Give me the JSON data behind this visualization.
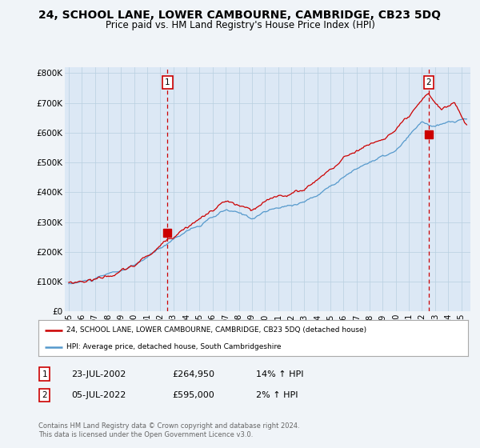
{
  "title": "24, SCHOOL LANE, LOWER CAMBOURNE, CAMBRIDGE, CB23 5DQ",
  "subtitle": "Price paid vs. HM Land Registry's House Price Index (HPI)",
  "title_fontsize": 10,
  "subtitle_fontsize": 8.5,
  "ylabel_ticks": [
    "£0",
    "£100K",
    "£200K",
    "£300K",
    "£400K",
    "£500K",
    "£600K",
    "£700K",
    "£800K"
  ],
  "ytick_values": [
    0,
    100000,
    200000,
    300000,
    400000,
    500000,
    600000,
    700000,
    800000
  ],
  "ylim": [
    0,
    820000
  ],
  "xlim_start": 1994.7,
  "xlim_end": 2025.7,
  "red_line_color": "#cc0000",
  "blue_line_color": "#5599cc",
  "dashed_line_color": "#cc0000",
  "marker1_x": 2002.55,
  "marker1_y": 264950,
  "marker2_x": 2022.51,
  "marker2_y": 595000,
  "legend_line1": "24, SCHOOL LANE, LOWER CAMBOURNE, CAMBRIDGE, CB23 5DQ (detached house)",
  "legend_line2": "HPI: Average price, detached house, South Cambridgeshire",
  "table_row1": [
    "1",
    "23-JUL-2002",
    "£264,950",
    "14% ↑ HPI"
  ],
  "table_row2": [
    "2",
    "05-JUL-2022",
    "£595,000",
    "2% ↑ HPI"
  ],
  "footnote": "Contains HM Land Registry data © Crown copyright and database right 2024.\nThis data is licensed under the Open Government Licence v3.0.",
  "bg_color": "#f0f4f8",
  "plot_bg_color": "#dce8f5",
  "grid_color": "#b8cfe0"
}
